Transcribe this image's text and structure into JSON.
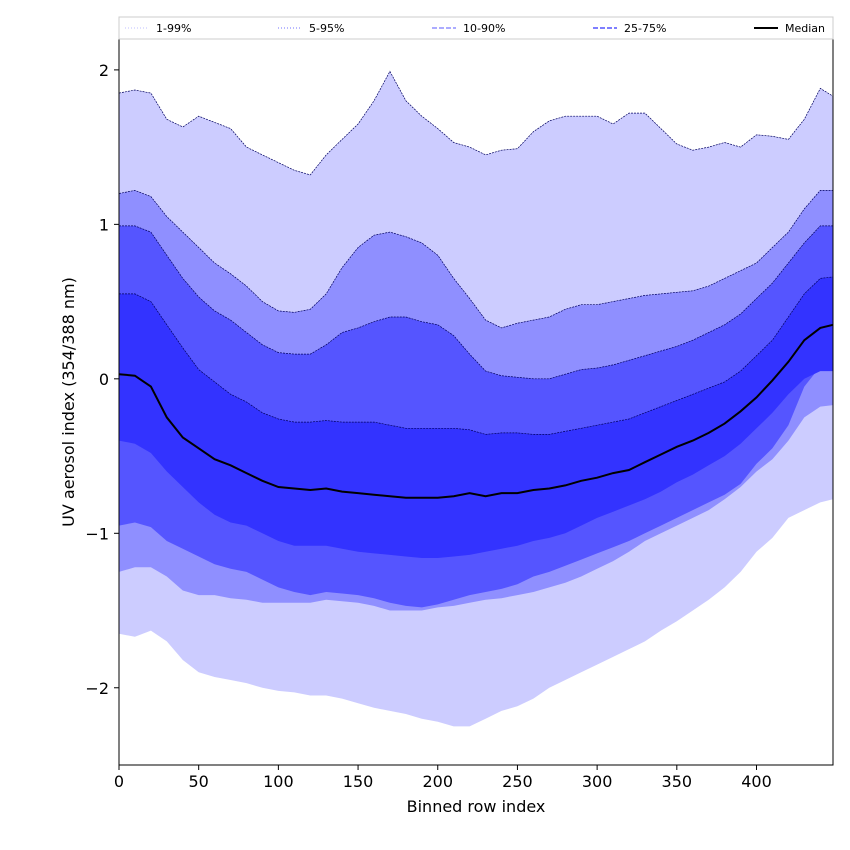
{
  "chart_data": {
    "type": "area",
    "xlabel": "Binned row index",
    "ylabel": "UV aerosol index (354/388 nm)",
    "xlim": [
      0,
      448
    ],
    "ylim": [
      -2.5,
      2.2
    ],
    "xticks": [
      0,
      50,
      100,
      150,
      200,
      250,
      300,
      350,
      400
    ],
    "yticks": [
      -2,
      -1,
      0,
      1,
      2
    ],
    "ytick_labels": [
      "−2",
      "−1",
      "0",
      "1",
      "2"
    ],
    "grid": false,
    "legend_position": "top",
    "legend": [
      {
        "label": "1-99%",
        "style": "dotted",
        "color": "#ccccff"
      },
      {
        "label": "5-95%",
        "style": "dotted",
        "color": "#8f8fff"
      },
      {
        "label": "10-90%",
        "style": "dashed",
        "color": "#7a7aff"
      },
      {
        "label": "25-75%",
        "style": "dashed",
        "color": "#3333ff"
      },
      {
        "label": "Median",
        "style": "solid",
        "color": "#000000"
      }
    ],
    "x": [
      0,
      10,
      20,
      30,
      40,
      50,
      60,
      70,
      80,
      90,
      100,
      110,
      120,
      130,
      140,
      150,
      160,
      170,
      180,
      190,
      200,
      210,
      220,
      230,
      240,
      250,
      260,
      270,
      280,
      290,
      300,
      310,
      320,
      330,
      340,
      350,
      360,
      370,
      380,
      390,
      400,
      410,
      420,
      430,
      440,
      448
    ],
    "bands": [
      {
        "name": "1-99%",
        "fill": "#ccccff",
        "upper": [
          1.85,
          1.87,
          1.85,
          1.68,
          1.63,
          1.7,
          1.66,
          1.62,
          1.5,
          1.45,
          1.4,
          1.35,
          1.32,
          1.45,
          1.55,
          1.65,
          1.8,
          1.99,
          1.8,
          1.7,
          1.62,
          1.53,
          1.5,
          1.45,
          1.48,
          1.49,
          1.6,
          1.67,
          1.7,
          1.7,
          1.7,
          1.65,
          1.72,
          1.72,
          1.62,
          1.52,
          1.48,
          1.5,
          1.53,
          1.5,
          1.58,
          1.57,
          1.55,
          1.68,
          1.88,
          1.83
        ],
        "lower": [
          -1.65,
          -1.67,
          -1.63,
          -1.7,
          -1.82,
          -1.9,
          -1.93,
          -1.95,
          -1.97,
          -2.0,
          -2.02,
          -2.03,
          -2.05,
          -2.05,
          -2.07,
          -2.1,
          -2.13,
          -2.15,
          -2.17,
          -2.2,
          -2.22,
          -2.25,
          -2.25,
          -2.2,
          -2.15,
          -2.12,
          -2.07,
          -2.0,
          -1.95,
          -1.9,
          -1.85,
          -1.8,
          -1.75,
          -1.7,
          -1.63,
          -1.57,
          -1.5,
          -1.43,
          -1.35,
          -1.25,
          -1.12,
          -1.03,
          -0.9,
          -0.85,
          -0.8,
          -0.78
        ]
      },
      {
        "name": "5-95%",
        "fill": "#8f8fff",
        "upper": [
          1.2,
          1.22,
          1.18,
          1.05,
          0.95,
          0.85,
          0.75,
          0.68,
          0.6,
          0.5,
          0.44,
          0.43,
          0.45,
          0.55,
          0.72,
          0.85,
          0.93,
          0.95,
          0.92,
          0.88,
          0.8,
          0.65,
          0.52,
          0.38,
          0.33,
          0.36,
          0.38,
          0.4,
          0.45,
          0.48,
          0.48,
          0.5,
          0.52,
          0.54,
          0.55,
          0.56,
          0.57,
          0.6,
          0.65,
          0.7,
          0.75,
          0.85,
          0.95,
          1.1,
          1.22,
          1.22
        ],
        "lower": [
          -1.25,
          -1.22,
          -1.22,
          -1.28,
          -1.37,
          -1.4,
          -1.4,
          -1.42,
          -1.43,
          -1.45,
          -1.45,
          -1.45,
          -1.45,
          -1.43,
          -1.44,
          -1.45,
          -1.47,
          -1.5,
          -1.5,
          -1.5,
          -1.48,
          -1.47,
          -1.45,
          -1.43,
          -1.42,
          -1.4,
          -1.38,
          -1.35,
          -1.32,
          -1.28,
          -1.23,
          -1.18,
          -1.12,
          -1.05,
          -1.0,
          -0.95,
          -0.9,
          -0.85,
          -0.78,
          -0.7,
          -0.6,
          -0.52,
          -0.4,
          -0.25,
          -0.18,
          -0.17
        ]
      },
      {
        "name": "10-90%",
        "fill": "#5555ff",
        "upper": [
          0.99,
          0.99,
          0.95,
          0.8,
          0.65,
          0.53,
          0.44,
          0.38,
          0.3,
          0.22,
          0.17,
          0.16,
          0.16,
          0.22,
          0.3,
          0.33,
          0.37,
          0.4,
          0.4,
          0.37,
          0.35,
          0.28,
          0.16,
          0.05,
          0.02,
          0.01,
          0.0,
          0.0,
          0.03,
          0.06,
          0.07,
          0.09,
          0.12,
          0.15,
          0.18,
          0.21,
          0.25,
          0.3,
          0.35,
          0.42,
          0.52,
          0.62,
          0.75,
          0.88,
          0.99,
          0.99
        ],
        "lower": [
          -0.95,
          -0.93,
          -0.96,
          -1.05,
          -1.1,
          -1.15,
          -1.2,
          -1.23,
          -1.25,
          -1.3,
          -1.35,
          -1.38,
          -1.4,
          -1.38,
          -1.39,
          -1.4,
          -1.42,
          -1.45,
          -1.47,
          -1.48,
          -1.46,
          -1.43,
          -1.4,
          -1.38,
          -1.36,
          -1.33,
          -1.28,
          -1.25,
          -1.21,
          -1.17,
          -1.13,
          -1.09,
          -1.05,
          -1.0,
          -0.95,
          -0.9,
          -0.85,
          -0.8,
          -0.75,
          -0.68,
          -0.55,
          -0.45,
          -0.3,
          -0.05,
          0.08,
          0.1
        ]
      },
      {
        "name": "25-75%",
        "fill": "#3333ff",
        "upper": [
          0.55,
          0.55,
          0.5,
          0.35,
          0.2,
          0.06,
          -0.02,
          -0.1,
          -0.15,
          -0.22,
          -0.26,
          -0.28,
          -0.28,
          -0.27,
          -0.28,
          -0.28,
          -0.28,
          -0.3,
          -0.32,
          -0.32,
          -0.32,
          -0.32,
          -0.33,
          -0.36,
          -0.35,
          -0.35,
          -0.36,
          -0.36,
          -0.34,
          -0.32,
          -0.3,
          -0.28,
          -0.26,
          -0.22,
          -0.18,
          -0.14,
          -0.1,
          -0.06,
          -0.02,
          0.05,
          0.15,
          0.25,
          0.4,
          0.55,
          0.65,
          0.66
        ],
        "lower": [
          -0.4,
          -0.42,
          -0.48,
          -0.6,
          -0.7,
          -0.8,
          -0.88,
          -0.93,
          -0.95,
          -1.0,
          -1.05,
          -1.08,
          -1.08,
          -1.08,
          -1.1,
          -1.12,
          -1.13,
          -1.14,
          -1.15,
          -1.16,
          -1.16,
          -1.15,
          -1.14,
          -1.12,
          -1.1,
          -1.08,
          -1.05,
          -1.03,
          -1.0,
          -0.95,
          -0.9,
          -0.86,
          -0.82,
          -0.78,
          -0.73,
          -0.67,
          -0.62,
          -0.56,
          -0.5,
          -0.42,
          -0.32,
          -0.22,
          -0.1,
          0.0,
          0.05,
          0.05
        ]
      }
    ],
    "median": [
      0.03,
      0.02,
      -0.05,
      -0.25,
      -0.38,
      -0.45,
      -0.52,
      -0.56,
      -0.61,
      -0.66,
      -0.7,
      -0.71,
      -0.72,
      -0.71,
      -0.73,
      -0.74,
      -0.75,
      -0.76,
      -0.77,
      -0.77,
      -0.77,
      -0.76,
      -0.74,
      -0.76,
      -0.74,
      -0.74,
      -0.72,
      -0.71,
      -0.69,
      -0.66,
      -0.64,
      -0.61,
      -0.59,
      -0.54,
      -0.49,
      -0.44,
      -0.4,
      -0.35,
      -0.29,
      -0.21,
      -0.12,
      -0.01,
      0.11,
      0.25,
      0.33,
      0.35
    ]
  }
}
